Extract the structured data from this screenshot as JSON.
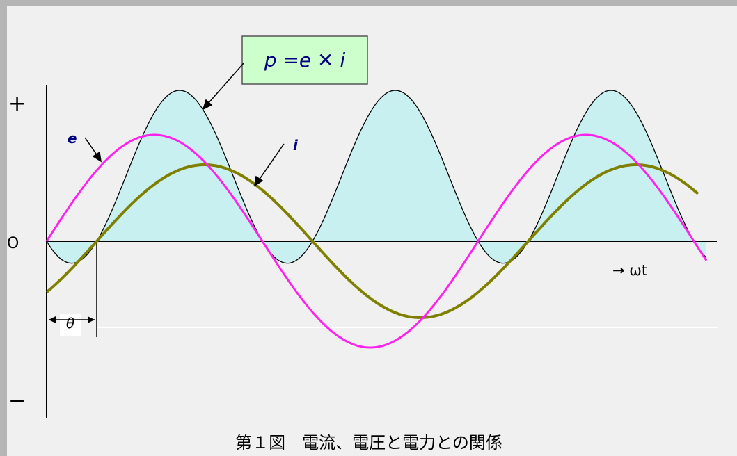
{
  "formula": {
    "text": "p =e ✕ i"
  },
  "axis": {
    "plus": "+",
    "zero": "O",
    "minus": "−",
    "wt": "→ ωt"
  },
  "labels": {
    "e": "e",
    "i": "i",
    "theta": "θ"
  },
  "caption": "第１図　電流、電圧と電力との関係",
  "colors": {
    "voltage": "#ff22ee",
    "current": "#808000",
    "power_fill": "#c8f0f0",
    "power_line": "#000000",
    "formula_box": "#ccffcc",
    "formula_text": "#000080"
  }
}
